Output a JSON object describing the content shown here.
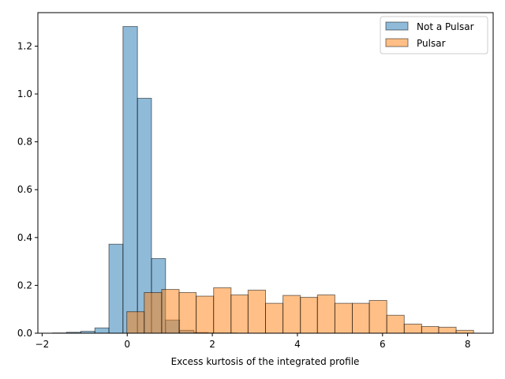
{
  "chart_data": {
    "type": "bar",
    "title": "",
    "xlabel": "Excess kurtosis of the integrated profile",
    "ylabel": "",
    "xlim": [
      -2.1,
      8.6
    ],
    "ylim": [
      0,
      1.34
    ],
    "xticks": [
      -2,
      0,
      2,
      4,
      6,
      8
    ],
    "yticks": [
      0.0,
      0.2,
      0.4,
      0.6,
      0.8,
      1.0,
      1.2
    ],
    "xtick_labels": [
      "−2",
      "0",
      "2",
      "4",
      "6",
      "8"
    ],
    "ytick_labels": [
      "0.0",
      "0.2",
      "0.4",
      "0.6",
      "0.8",
      "1.0",
      "1.2"
    ],
    "grid": false,
    "legend_position": "top-right",
    "series": [
      {
        "name": "Not a Pulsar",
        "color": "#1f77b4",
        "opacity": 0.5,
        "bins": [
          {
            "x0": -1.76,
            "x1": -1.43,
            "value": 0.001
          },
          {
            "x0": -1.43,
            "x1": -1.09,
            "value": 0.004
          },
          {
            "x0": -1.09,
            "x1": -0.76,
            "value": 0.008
          },
          {
            "x0": -0.76,
            "x1": -0.43,
            "value": 0.022
          },
          {
            "x0": -0.43,
            "x1": -0.1,
            "value": 0.372
          },
          {
            "x0": -0.1,
            "x1": 0.24,
            "value": 1.282
          },
          {
            "x0": 0.24,
            "x1": 0.57,
            "value": 0.982
          },
          {
            "x0": 0.57,
            "x1": 0.9,
            "value": 0.312
          },
          {
            "x0": 0.9,
            "x1": 1.23,
            "value": 0.055
          },
          {
            "x0": 1.23,
            "x1": 1.57,
            "value": 0.012
          },
          {
            "x0": 1.57,
            "x1": 1.9,
            "value": 0.003
          },
          {
            "x0": 1.9,
            "x1": 2.23,
            "value": 0.001
          },
          {
            "x0": 2.23,
            "x1": 2.57,
            "value": 0.001
          }
        ]
      },
      {
        "name": "Pulsar",
        "color": "#ff7f0e",
        "opacity": 0.5,
        "bins": [
          {
            "x0": -0.01,
            "x1": 0.4,
            "value": 0.09
          },
          {
            "x0": 0.4,
            "x1": 0.81,
            "value": 0.17
          },
          {
            "x0": 0.81,
            "x1": 1.22,
            "value": 0.183
          },
          {
            "x0": 1.22,
            "x1": 1.62,
            "value": 0.17
          },
          {
            "x0": 1.62,
            "x1": 2.03,
            "value": 0.155
          },
          {
            "x0": 2.03,
            "x1": 2.44,
            "value": 0.19
          },
          {
            "x0": 2.44,
            "x1": 2.84,
            "value": 0.16
          },
          {
            "x0": 2.84,
            "x1": 3.25,
            "value": 0.18
          },
          {
            "x0": 3.25,
            "x1": 3.66,
            "value": 0.125
          },
          {
            "x0": 3.66,
            "x1": 4.07,
            "value": 0.158
          },
          {
            "x0": 4.07,
            "x1": 4.47,
            "value": 0.15
          },
          {
            "x0": 4.47,
            "x1": 4.88,
            "value": 0.16
          },
          {
            "x0": 4.88,
            "x1": 5.29,
            "value": 0.125
          },
          {
            "x0": 5.29,
            "x1": 5.69,
            "value": 0.125
          },
          {
            "x0": 5.69,
            "x1": 6.1,
            "value": 0.137
          },
          {
            "x0": 6.1,
            "x1": 6.51,
            "value": 0.075
          },
          {
            "x0": 6.51,
            "x1": 6.92,
            "value": 0.038
          },
          {
            "x0": 6.92,
            "x1": 7.32,
            "value": 0.028
          },
          {
            "x0": 7.32,
            "x1": 7.73,
            "value": 0.025
          },
          {
            "x0": 7.73,
            "x1": 8.14,
            "value": 0.012
          }
        ]
      }
    ]
  }
}
